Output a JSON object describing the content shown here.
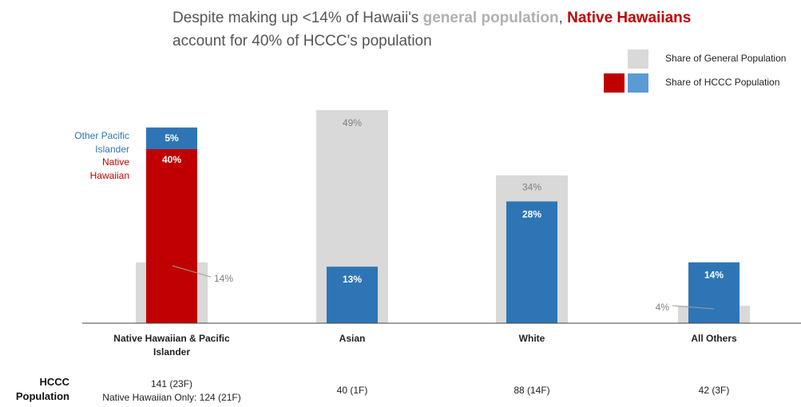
{
  "title": {
    "part1": "Despite making up <14% of Hawaii's ",
    "highlight_general": "general population",
    "part2": ", ",
    "highlight_native": "Native Hawaiians",
    "line2": "account for 40% of HCCC's population"
  },
  "legend": {
    "general_label": "Share of General Population",
    "hccc_label": "Share of HCCC Population"
  },
  "colors": {
    "general": "#d9d9d9",
    "hccc": "#2e75b6",
    "native": "#c00000",
    "other_pi": "#2e75b6",
    "legend_hccc_light": "#5b9bd5",
    "gray_text": "#7f7f7f"
  },
  "chart_data": {
    "type": "bar",
    "title": "Despite making up <14% of Hawaii's general population, Native Hawaiians account for 40% of HCCC's population",
    "categories": [
      "Native Hawaiian & Pacific Islander",
      "Asian",
      "White",
      "All Others"
    ],
    "ylim": [
      0,
      55
    ],
    "series": [
      {
        "name": "Share of General Population",
        "values": [
          14,
          49,
          34,
          4
        ],
        "labels": [
          "14%",
          "49%",
          "34%",
          "4%"
        ]
      },
      {
        "name": "Share of HCCC Population",
        "values": [
          45,
          13,
          28,
          14
        ],
        "labels": [
          "",
          "13%",
          "28%",
          "14%"
        ]
      }
    ],
    "stacked_first": {
      "segments": [
        {
          "name": "Native Hawaiian",
          "value": 40,
          "label": "40%"
        },
        {
          "name": "Other Pacific Islander",
          "value": 5,
          "label": "5%"
        }
      ]
    },
    "side_labels": {
      "other_pi": "Other Pacific Islander",
      "native": "Native Hawaiian"
    }
  },
  "hccc_population": {
    "row_title": "HCCC Population",
    "values": [
      "141 (23F)",
      "40 (1F)",
      "88 (14F)",
      "42 (3F)"
    ],
    "note": "Native Hawaiian Only: 124 (21F)"
  }
}
